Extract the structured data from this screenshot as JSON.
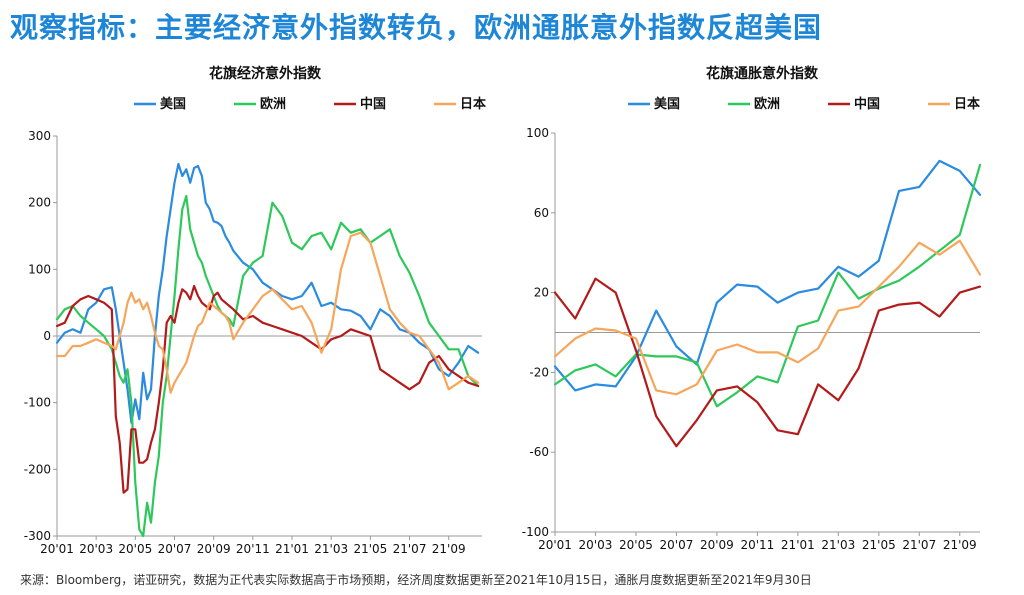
{
  "page": {
    "title": "观察指标：主要经济意外指数转负，欧洲通胀意外指数反超美国",
    "footnote": "来源：Bloomberg，诺亚研究，数据为正代表实际数据高于市场预期，经济周度数据更新至2021年10月15日，通胀月度数据更新至2021年9月30日"
  },
  "colors": {
    "us": "#2a8be0",
    "eu": "#2ec85a",
    "cn": "#b31a1a",
    "jp": "#f5a65b",
    "axis": "#999999",
    "title": "#1e86d6"
  },
  "chart_data": [
    {
      "type": "line",
      "title": "花旗经济意外指数",
      "ylim": [
        -300,
        300
      ],
      "yticks": [
        300,
        200,
        100,
        0,
        -100,
        -200,
        -300
      ],
      "xlim": [
        0,
        21.7
      ],
      "xticks": [
        0,
        2,
        4,
        6,
        8,
        10,
        12,
        14,
        16,
        18,
        20
      ],
      "xticklabels": [
        "20'01",
        "20'03",
        "20'05",
        "20'07",
        "20'09",
        "20'11",
        "21'01",
        "21'03",
        "21'05",
        "21'07",
        "21'09"
      ],
      "legend": "top-center",
      "series": [
        {
          "name": "美国",
          "key": "us",
          "x": [
            0,
            0.4,
            0.8,
            1.2,
            1.6,
            2.0,
            2.4,
            2.8,
            3.0,
            3.2,
            3.4,
            3.6,
            3.8,
            4.0,
            4.2,
            4.4,
            4.6,
            4.8,
            5.0,
            5.2,
            5.4,
            5.6,
            5.8,
            6.0,
            6.2,
            6.4,
            6.6,
            6.8,
            7.0,
            7.2,
            7.4,
            7.6,
            7.8,
            8.0,
            8.2,
            8.4,
            8.6,
            8.8,
            9.0,
            9.5,
            10.0,
            10.5,
            11.0,
            11.5,
            12.0,
            12.5,
            13.0,
            13.5,
            14.0,
            14.5,
            15.0,
            15.5,
            16.0,
            16.5,
            17.0,
            17.5,
            18.0,
            18.5,
            19.0,
            19.5,
            20.0,
            20.5,
            21.0,
            21.5
          ],
          "y": [
            -10,
            5,
            10,
            5,
            40,
            50,
            70,
            73,
            40,
            0,
            -40,
            -80,
            -130,
            -95,
            -125,
            -55,
            -95,
            -80,
            0,
            60,
            100,
            150,
            190,
            230,
            258,
            240,
            250,
            230,
            252,
            255,
            240,
            200,
            190,
            172,
            170,
            165,
            150,
            140,
            128,
            110,
            100,
            80,
            70,
            60,
            55,
            60,
            80,
            45,
            50,
            40,
            38,
            30,
            10,
            40,
            30,
            10,
            5,
            -10,
            -20,
            -50,
            -60,
            -40,
            -15,
            -25
          ]
        },
        {
          "name": "欧洲",
          "key": "eu",
          "x": [
            0,
            0.4,
            0.8,
            1.2,
            1.6,
            2.0,
            2.4,
            2.8,
            3.0,
            3.2,
            3.4,
            3.6,
            3.8,
            4.0,
            4.2,
            4.4,
            4.6,
            4.8,
            5.0,
            5.2,
            5.4,
            5.6,
            5.8,
            6.0,
            6.2,
            6.4,
            6.6,
            6.8,
            7.0,
            7.2,
            7.4,
            7.6,
            7.8,
            8.0,
            8.2,
            8.4,
            8.6,
            8.8,
            9.0,
            9.5,
            10.0,
            10.5,
            11.0,
            11.5,
            12.0,
            12.5,
            13.0,
            13.5,
            14.0,
            14.5,
            15.0,
            15.5,
            16.0,
            16.5,
            17.0,
            17.5,
            18.0,
            18.5,
            19.0,
            19.5,
            20.0,
            20.5,
            21.0,
            21.5
          ],
          "y": [
            25,
            40,
            45,
            30,
            20,
            10,
            0,
            -20,
            -40,
            -60,
            -70,
            -50,
            -100,
            -220,
            -290,
            -300,
            -250,
            -280,
            -220,
            -180,
            -100,
            -60,
            0,
            60,
            130,
            190,
            210,
            160,
            140,
            120,
            110,
            90,
            75,
            60,
            45,
            35,
            30,
            25,
            15,
            90,
            110,
            120,
            200,
            180,
            140,
            130,
            150,
            155,
            130,
            170,
            155,
            160,
            140,
            150,
            160,
            120,
            95,
            60,
            20,
            0,
            -20,
            -20,
            -60,
            -75
          ]
        },
        {
          "name": "中国",
          "key": "cn",
          "x": [
            0,
            0.4,
            0.8,
            1.2,
            1.6,
            2.0,
            2.4,
            2.8,
            3.0,
            3.2,
            3.4,
            3.6,
            3.8,
            4.0,
            4.2,
            4.4,
            4.6,
            4.8,
            5.0,
            5.2,
            5.4,
            5.6,
            5.8,
            6.0,
            6.2,
            6.4,
            6.6,
            6.8,
            7.0,
            7.2,
            7.4,
            7.6,
            7.8,
            8.0,
            8.2,
            8.4,
            8.6,
            8.8,
            9.0,
            9.5,
            10.0,
            10.5,
            11.0,
            11.5,
            12.0,
            12.5,
            13.0,
            13.5,
            14.0,
            14.5,
            15.0,
            15.5,
            16.0,
            16.5,
            17.0,
            17.5,
            18.0,
            18.5,
            19.0,
            19.5,
            20.0,
            20.5,
            21.0,
            21.5
          ],
          "y": [
            15,
            20,
            45,
            55,
            60,
            55,
            50,
            40,
            -120,
            -160,
            -235,
            -230,
            -140,
            -140,
            -190,
            -190,
            -185,
            -160,
            -140,
            -100,
            -50,
            20,
            30,
            20,
            50,
            70,
            65,
            55,
            75,
            60,
            50,
            45,
            40,
            60,
            65,
            55,
            50,
            45,
            40,
            25,
            30,
            20,
            15,
            10,
            5,
            0,
            -10,
            -20,
            -5,
            0,
            10,
            5,
            0,
            -50,
            -60,
            -70,
            -80,
            -70,
            -40,
            -30,
            -50,
            -60,
            -70,
            -75
          ]
        },
        {
          "name": "日本",
          "key": "jp",
          "x": [
            0,
            0.4,
            0.8,
            1.2,
            1.6,
            2.0,
            2.4,
            2.8,
            3.0,
            3.2,
            3.4,
            3.6,
            3.8,
            4.0,
            4.2,
            4.4,
            4.6,
            4.8,
            5.0,
            5.2,
            5.4,
            5.6,
            5.8,
            6.0,
            6.2,
            6.4,
            6.6,
            6.8,
            7.0,
            7.2,
            7.4,
            7.6,
            7.8,
            8.0,
            8.2,
            8.4,
            8.6,
            8.8,
            9.0,
            9.5,
            10.0,
            10.5,
            11.0,
            11.5,
            12.0,
            12.5,
            13.0,
            13.5,
            14.0,
            14.5,
            15.0,
            15.5,
            16.0,
            16.5,
            17.0,
            17.5,
            18.0,
            18.5,
            19.0,
            19.5,
            20.0,
            20.5,
            21.0,
            21.5
          ],
          "y": [
            -30,
            -30,
            -15,
            -15,
            -10,
            -5,
            -10,
            -15,
            -20,
            0,
            20,
            50,
            65,
            50,
            55,
            40,
            50,
            30,
            5,
            -15,
            -20,
            -50,
            -85,
            -70,
            -60,
            -50,
            -40,
            -20,
            0,
            15,
            20,
            35,
            50,
            45,
            40,
            35,
            30,
            20,
            -5,
            20,
            40,
            60,
            70,
            55,
            40,
            45,
            20,
            -25,
            10,
            100,
            150,
            155,
            140,
            90,
            40,
            20,
            5,
            0,
            -20,
            -40,
            -80,
            -70,
            -60,
            -70
          ]
        }
      ]
    },
    {
      "type": "line",
      "title": "花旗通胀意外指数",
      "ylim": [
        -100,
        100
      ],
      "yticks": [
        100,
        60,
        20,
        -20,
        -60,
        -100
      ],
      "xlim": [
        0,
        21
      ],
      "xticks": [
        0,
        2,
        4,
        6,
        8,
        10,
        12,
        14,
        16,
        18,
        20
      ],
      "xticklabels": [
        "20'01",
        "20'03",
        "20'05",
        "20'07",
        "20'09",
        "20'11",
        "21'01",
        "21'03",
        "21'05",
        "21'07",
        "21'09"
      ],
      "legend": "top-center",
      "series": [
        {
          "name": "美国",
          "key": "us",
          "x": [
            0,
            1,
            2,
            3,
            4,
            5,
            6,
            7,
            8,
            9,
            10,
            11,
            12,
            13,
            14,
            15,
            16,
            17,
            18,
            19,
            20,
            21
          ],
          "y": [
            -17,
            -29,
            -26,
            -27,
            -12,
            11,
            -7,
            -16,
            15,
            24,
            23,
            15,
            20,
            22,
            33,
            28,
            36,
            71,
            73,
            86,
            81,
            69
          ]
        },
        {
          "name": "欧洲",
          "key": "eu",
          "x": [
            0,
            1,
            2,
            3,
            4,
            5,
            6,
            7,
            8,
            9,
            10,
            11,
            12,
            13,
            14,
            15,
            16,
            17,
            18,
            19,
            20,
            21
          ],
          "y": [
            -26,
            -19,
            -16,
            -22,
            -11,
            -12,
            -12,
            -15,
            -37,
            -30,
            -22,
            -25,
            3,
            6,
            30,
            17,
            22,
            26,
            33,
            41,
            49,
            84
          ]
        },
        {
          "name": "中国",
          "key": "cn",
          "x": [
            0,
            1,
            2,
            3,
            4,
            5,
            6,
            7,
            8,
            9,
            10,
            11,
            12,
            13,
            14,
            15,
            16,
            17,
            18,
            19,
            20,
            21
          ],
          "y": [
            20,
            7,
            27,
            20,
            -9,
            -42,
            -57,
            -44,
            -29,
            -27,
            -35,
            -49,
            -51,
            -26,
            -34,
            -18,
            11,
            14,
            15,
            8,
            20,
            23
          ]
        },
        {
          "name": "日本",
          "key": "jp",
          "x": [
            0,
            1,
            2,
            3,
            4,
            5,
            6,
            7,
            8,
            9,
            10,
            11,
            12,
            13,
            14,
            15,
            16,
            17,
            18,
            19,
            20,
            21
          ],
          "y": [
            -12,
            -3,
            2,
            1,
            -3,
            -29,
            -31,
            -26,
            -9,
            -6,
            -10,
            -10,
            -15,
            -8,
            11,
            13,
            23,
            33,
            45,
            39,
            46,
            29
          ]
        }
      ]
    }
  ]
}
